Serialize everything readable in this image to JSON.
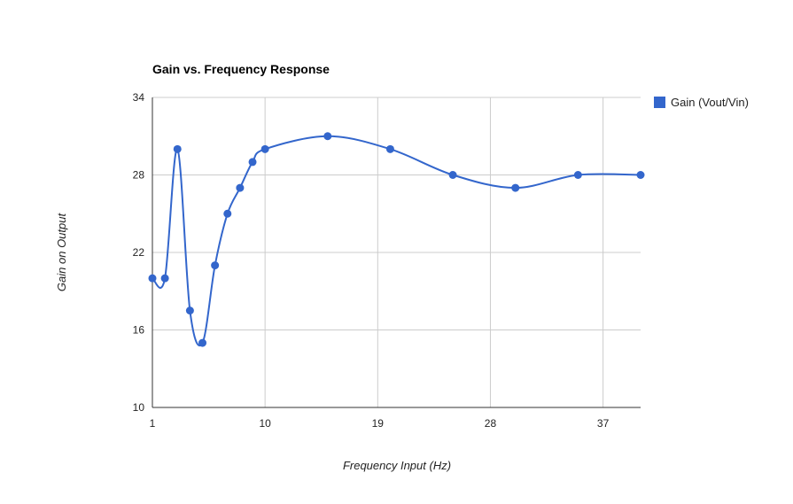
{
  "chart_data": {
    "type": "line",
    "title": "Gain vs. Frequency Response",
    "xlabel": "Frequency Input (Hz)",
    "ylabel": "Gain on Output",
    "xlim": [
      1,
      40
    ],
    "ylim": [
      10,
      34
    ],
    "x_ticks": [
      1,
      10,
      19,
      28,
      37
    ],
    "y_ticks": [
      10,
      16,
      22,
      28,
      34
    ],
    "grid": true,
    "legend_position": "right",
    "curve": "smooth",
    "series": [
      {
        "name": "Gain (Vout/Vin)",
        "color": "#3366cc",
        "points": [
          {
            "x": 1,
            "y": 20
          },
          {
            "x": 2,
            "y": 20
          },
          {
            "x": 3,
            "y": 30
          },
          {
            "x": 4,
            "y": 17.5
          },
          {
            "x": 5,
            "y": 15
          },
          {
            "x": 6,
            "y": 21
          },
          {
            "x": 7,
            "y": 25
          },
          {
            "x": 8,
            "y": 27
          },
          {
            "x": 9,
            "y": 29
          },
          {
            "x": 10,
            "y": 30
          },
          {
            "x": 15,
            "y": 31
          },
          {
            "x": 20,
            "y": 30
          },
          {
            "x": 25,
            "y": 28
          },
          {
            "x": 30,
            "y": 27
          },
          {
            "x": 35,
            "y": 28
          },
          {
            "x": 40,
            "y": 28
          }
        ]
      }
    ]
  }
}
